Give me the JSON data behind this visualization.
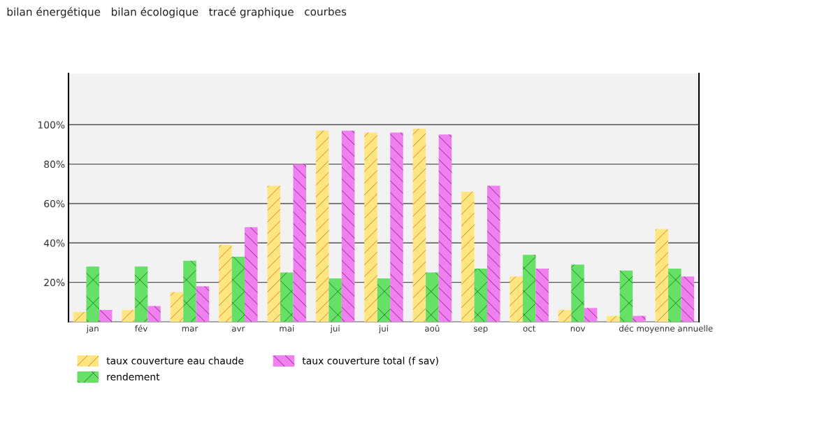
{
  "chart_data": {
    "type": "bar",
    "annotations": [
      "bilan énergétique",
      "bilan écologique",
      "tracé graphique",
      "courbes"
    ],
    "categories": [
      "jan",
      "fév",
      "mar",
      "avr",
      "mai",
      "jui",
      "jui",
      "aoû",
      "sep",
      "oct",
      "nov",
      "déc",
      "moyenne annuelle"
    ],
    "series": [
      {
        "name": "taux couverture eau chaude",
        "color": "#ffe680",
        "values": [
          5,
          6,
          15,
          39,
          69,
          97,
          96,
          98,
          66,
          23,
          6,
          3,
          47
        ]
      },
      {
        "name": "rendement",
        "color": "#66e066",
        "values": [
          28,
          28,
          31,
          33,
          25,
          22,
          22,
          25,
          27,
          34,
          29,
          26,
          27
        ]
      },
      {
        "name": "taux couverture total (f sav)",
        "color": "#f080f0",
        "values": [
          6,
          8,
          18,
          48,
          80,
          97,
          96,
          95,
          69,
          27,
          7,
          3,
          23
        ]
      }
    ],
    "ylim": [
      0,
      126
    ],
    "yticks": [
      {
        "value": 20,
        "label": "20%"
      },
      {
        "value": 40,
        "label": "40%"
      },
      {
        "value": 60,
        "label": "60%"
      },
      {
        "value": 80,
        "label": "80%"
      },
      {
        "value": 100,
        "label": "100%"
      }
    ],
    "grid": "y",
    "legend": "bottom"
  }
}
